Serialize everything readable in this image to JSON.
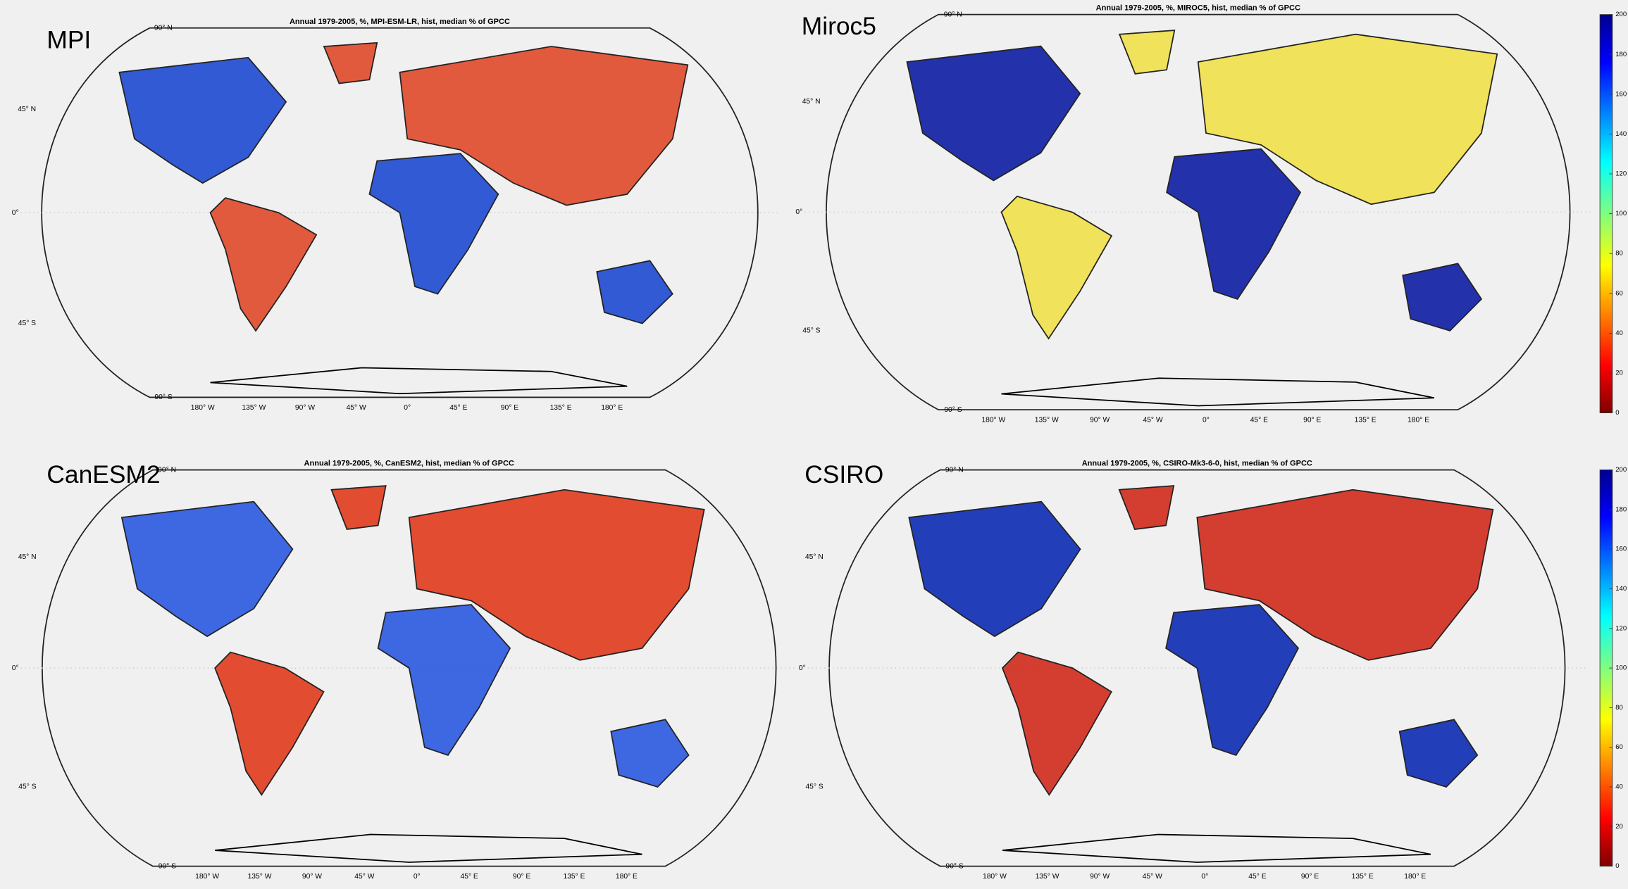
{
  "panels": [
    {
      "label": "MPI",
      "title": "Annual 1979-2005, %, MPI-ESM-LR, hist, median % of GPCC"
    },
    {
      "label": "Miroc5",
      "title": "Annual 1979-2005, %, MIROC5, hist, median % of GPCC"
    },
    {
      "label": "CanESM2",
      "title": "Annual 1979-2005, %, CanESM2, hist, median % of GPCC"
    },
    {
      "label": "CSIRO",
      "title": "Annual 1979-2005, %, CSIRO-Mk3-6-0, hist, median % of GPCC"
    }
  ],
  "lat_labels": [
    "90° N",
    "45° N",
    "0°",
    "45° S",
    "90° S"
  ],
  "lon_labels": [
    "180° W",
    "135° W",
    "90° W",
    "45° W",
    "0°",
    "45° E",
    "90° E",
    "135° E",
    "180° E"
  ],
  "colorbars": [
    {
      "ticks": [
        0,
        20,
        40,
        60,
        80,
        100,
        120,
        140,
        160,
        180,
        200
      ]
    },
    {
      "ticks": [
        0,
        20,
        40,
        60,
        80,
        100,
        120,
        140,
        160,
        180,
        200
      ]
    }
  ]
}
